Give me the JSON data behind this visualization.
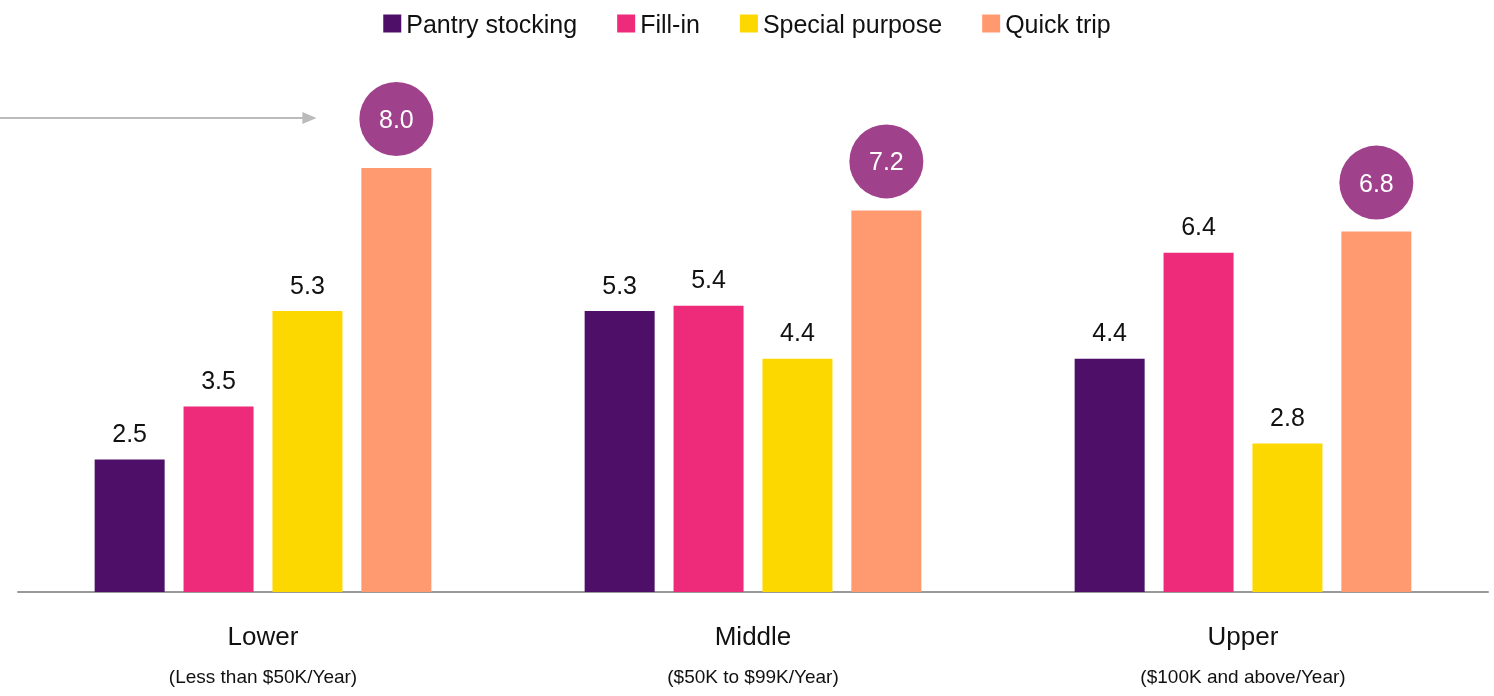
{
  "chart_data": {
    "type": "bar",
    "categories": [
      "Lower\n(Less than $50K/Year)",
      "Middle\n($50K to $99K/Year)",
      "Upper\n($100K and above/Year)"
    ],
    "series": [
      {
        "name": "Pantry stocking",
        "color": "#4e0f68",
        "values": [
          2.5,
          5.3,
          4.4
        ],
        "value_labels": [
          "2.5",
          "5.3",
          "4.4"
        ]
      },
      {
        "name": "Fill-in",
        "color": "#ee2a7b",
        "values": [
          3.5,
          5.4,
          6.4
        ],
        "value_labels": [
          "3.5",
          "5.4",
          "6.4"
        ]
      },
      {
        "name": "Special purpose",
        "color": "#fdd800",
        "values": [
          5.3,
          4.4,
          2.8
        ],
        "value_labels": [
          "5.3",
          "4.4",
          "2.8"
        ]
      },
      {
        "name": "Quick trip",
        "color": "#ff9a70",
        "values": [
          8.0,
          7.2,
          6.8
        ],
        "value_labels": [
          "8.0",
          "7.2",
          "6.8"
        ]
      }
    ],
    "legend": "top"
  }
}
